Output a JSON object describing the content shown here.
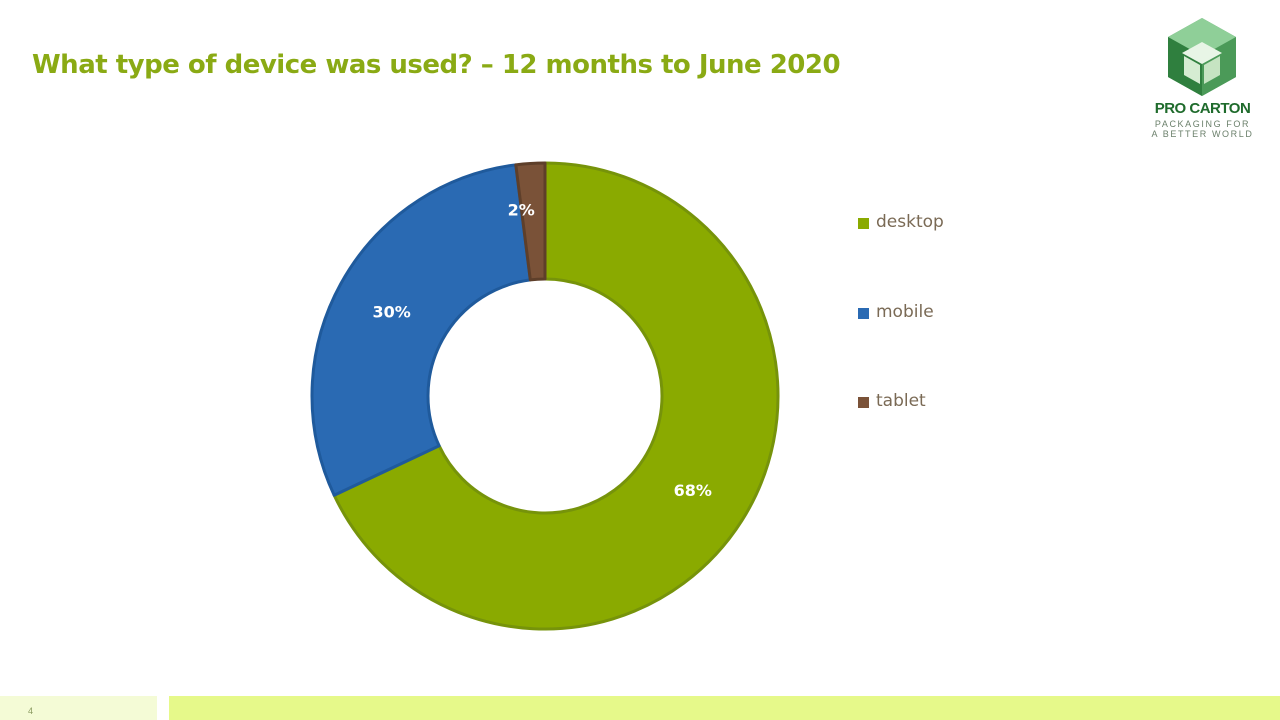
{
  "slide": {
    "title": "What type of device was used? – 12 months to June 2020",
    "page_number": "4"
  },
  "logo": {
    "name": "PRO CARTON",
    "tagline_line1": "PACKAGING FOR",
    "tagline_line2": "A BETTER WORLD"
  },
  "chart_data": {
    "type": "pie",
    "donut": true,
    "categories": [
      "desktop",
      "mobile",
      "tablet"
    ],
    "values": [
      68,
      30,
      2
    ],
    "labels": [
      "68%",
      "30%",
      "2%"
    ],
    "colors": [
      "#8aaa00",
      "#2a6ab3",
      "#7a5238"
    ],
    "legend_position": "right"
  }
}
